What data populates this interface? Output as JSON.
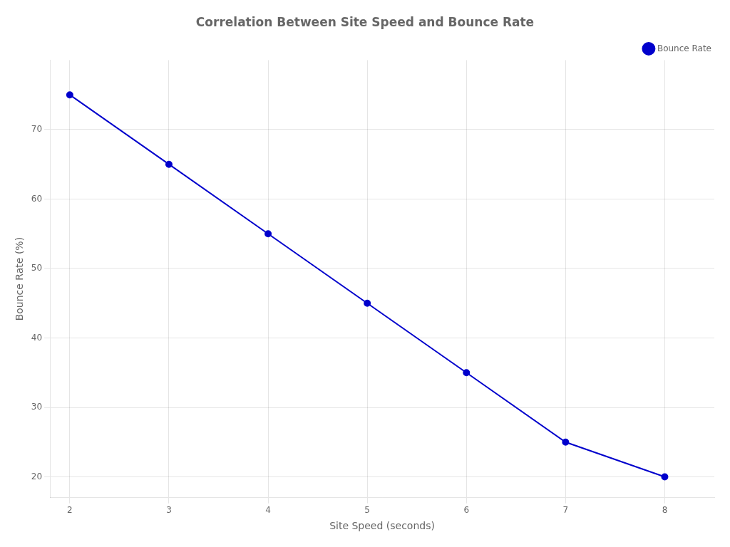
{
  "chart_data": {
    "type": "line",
    "title": "Correlation Between Site Speed and Bounce Rate",
    "x_label": "Site Speed (seconds)",
    "y_label": "Bounce Rate (%)",
    "x": [
      2,
      3,
      4,
      5,
      6,
      7,
      8
    ],
    "series": [
      {
        "name": "Bounce Rate",
        "color": "#0000CC",
        "marker": "circle",
        "line_style": "solid",
        "values": [
          75,
          65,
          55,
          45,
          35,
          25,
          20
        ]
      }
    ],
    "xlim": [
      1.8,
      8.5
    ],
    "xticks": [
      2,
      3,
      4,
      5,
      6,
      7,
      8
    ],
    "ylim": [
      17,
      80
    ],
    "yticks": [
      20,
      30,
      40,
      50,
      60,
      70
    ],
    "grid": true,
    "legend": "upper right"
  }
}
